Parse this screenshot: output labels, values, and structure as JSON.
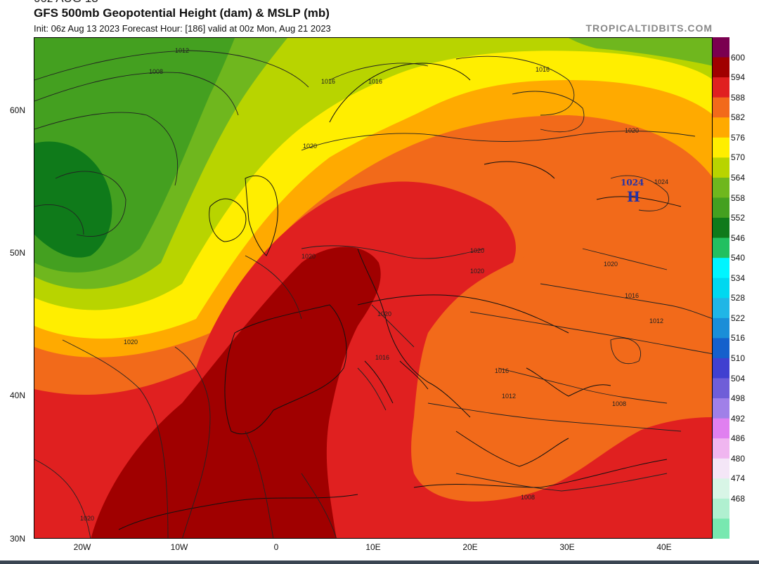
{
  "header": {
    "top_partial": "00z AUG 13",
    "title": "GFS 500mb Geopotential Height (dam) & MSLP (mb)",
    "subtitle": "Init: 06z Aug 13 2023   Forecast Hour: [186]   valid at 00z Mon, Aug 21 2023",
    "credit": "TROPICALTIDBITS.COM"
  },
  "map": {
    "lat_labels": [
      "60N",
      "50N",
      "40N",
      "30N"
    ],
    "lon_labels": [
      "20W",
      "10W",
      "0",
      "10E",
      "20E",
      "30E",
      "40E"
    ],
    "isobar_labels": [
      "1012",
      "1008",
      "1016",
      "1016",
      "1016",
      "1020",
      "1020",
      "1020",
      "1020",
      "1020",
      "1020",
      "1024",
      "1020",
      "1016",
      "1012",
      "1016",
      "1016",
      "1012",
      "1008",
      "1008",
      "1020",
      "1020"
    ],
    "high_center": {
      "value": "1024",
      "letter": "H"
    }
  },
  "colorbar": {
    "labels": [
      "600",
      "594",
      "588",
      "582",
      "576",
      "570",
      "564",
      "558",
      "552",
      "546",
      "540",
      "534",
      "528",
      "522",
      "516",
      "510",
      "504",
      "498",
      "492",
      "486",
      "480",
      "474",
      "468"
    ],
    "colors": [
      "#7a0050",
      "#a00000",
      "#e02020",
      "#f26a1a",
      "#ffaa00",
      "#ffee00",
      "#b8d400",
      "#6fb71e",
      "#44a020",
      "#0f7a1a",
      "#22c060",
      "#00f5ff",
      "#00d8f0",
      "#20b6e6",
      "#1a8ed8",
      "#1560cc",
      "#4040d0",
      "#6f5ed8",
      "#a080e8",
      "#e080f0",
      "#f0b6f0",
      "#f4e6f7",
      "#d8f5e6",
      "#b0f0d0",
      "#78e8b0"
    ]
  }
}
